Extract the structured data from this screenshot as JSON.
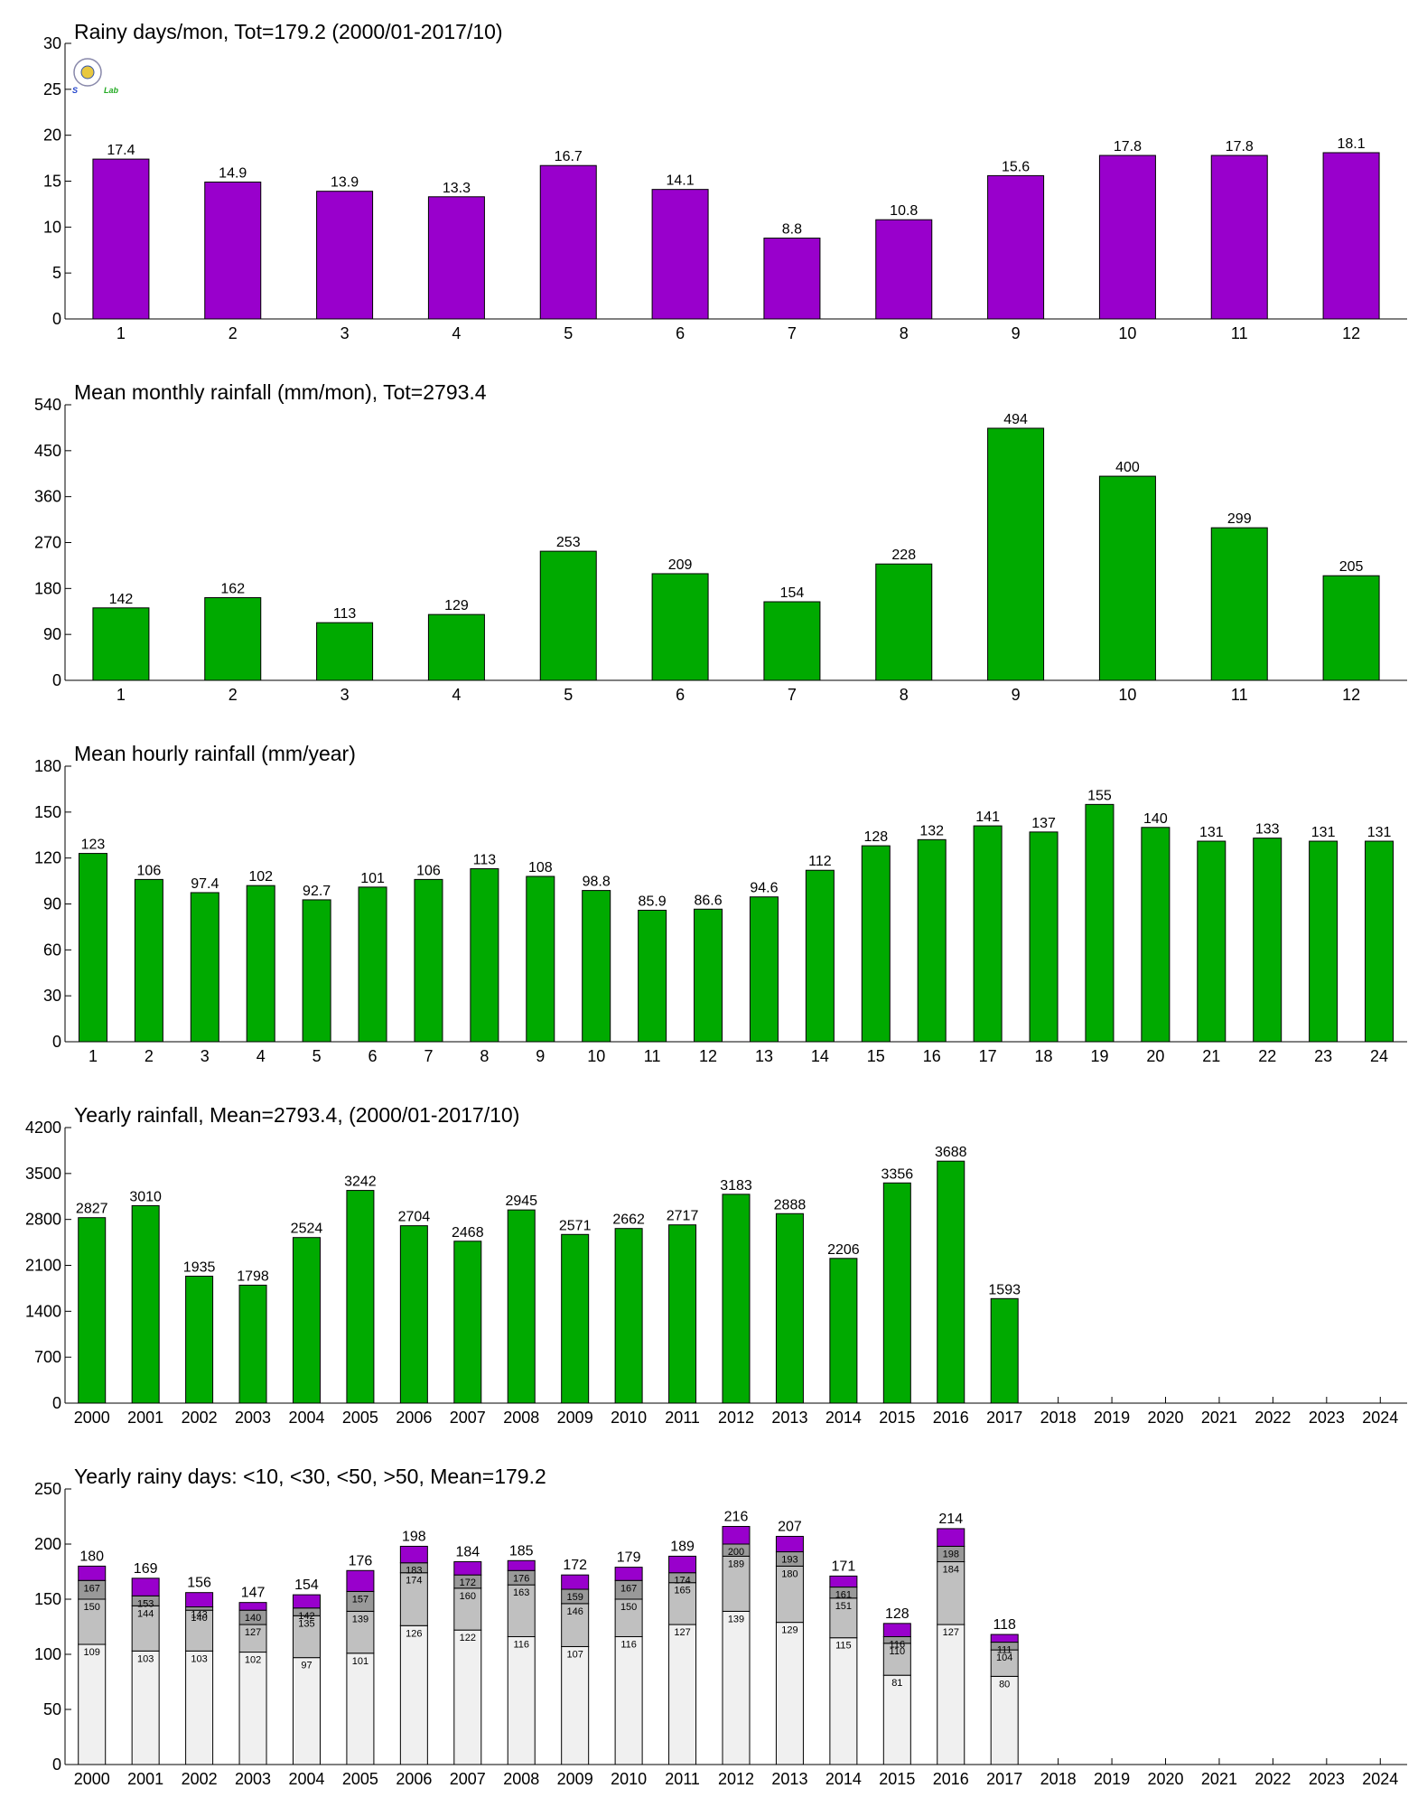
{
  "colors": {
    "purple": "#9900cc",
    "green": "#00aa00",
    "seg_lt10": "#f0f0f0",
    "seg_lt30": "#c0c0c0",
    "seg_lt50": "#999999",
    "axis": "#000000"
  },
  "logo": {
    "icon": "lab-logo-icon",
    "text_left": "S",
    "text_right": "Lab"
  },
  "chart_data": [
    {
      "type": "bar",
      "title": "Rainy days/mon, Tot=179.2 (2000/01-2017/10)",
      "categories": [
        "1",
        "2",
        "3",
        "4",
        "5",
        "6",
        "7",
        "8",
        "9",
        "10",
        "11",
        "12"
      ],
      "values": [
        17.4,
        14.9,
        13.9,
        13.3,
        16.7,
        14.1,
        8.8,
        10.8,
        15.6,
        17.8,
        17.8,
        18.1
      ],
      "labels": [
        "17.4",
        "14.9",
        "13.9",
        "13.3",
        "16.7",
        "14.1",
        "8.8",
        "10.8",
        "15.6",
        "17.8",
        "17.8",
        "18.1"
      ],
      "ylim": [
        0,
        30
      ],
      "yticks": [
        "0",
        "5",
        "10",
        "15",
        "20",
        "25",
        "30"
      ],
      "color": "#9900cc",
      "grid": false
    },
    {
      "type": "bar",
      "title": "Mean monthly rainfall (mm/mon), Tot=2793.4",
      "categories": [
        "1",
        "2",
        "3",
        "4",
        "5",
        "6",
        "7",
        "8",
        "9",
        "10",
        "11",
        "12"
      ],
      "values": [
        142,
        162,
        113,
        129,
        253,
        209,
        154,
        228,
        494,
        400,
        299,
        205
      ],
      "labels": [
        "142",
        "162",
        "113",
        "129",
        "253",
        "209",
        "154",
        "228",
        "494",
        "400",
        "299",
        "205"
      ],
      "ylim": [
        0,
        540
      ],
      "yticks": [
        "0",
        "90",
        "180",
        "270",
        "360",
        "450",
        "540"
      ],
      "color": "#00aa00",
      "grid": false
    },
    {
      "type": "bar",
      "title": "Mean hourly rainfall (mm/year)",
      "categories": [
        "1",
        "2",
        "3",
        "4",
        "5",
        "6",
        "7",
        "8",
        "9",
        "10",
        "11",
        "12",
        "13",
        "14",
        "15",
        "16",
        "17",
        "18",
        "19",
        "20",
        "21",
        "22",
        "23",
        "24"
      ],
      "values": [
        123,
        106,
        97.4,
        102,
        92.7,
        101,
        106,
        113,
        108,
        98.8,
        85.9,
        86.6,
        94.6,
        112,
        128,
        132,
        141,
        137,
        155,
        140,
        131,
        133,
        131,
        131
      ],
      "labels": [
        "123",
        "106",
        "97.4",
        "102",
        "92.7",
        "101",
        "106",
        "113",
        "108",
        "98.8",
        "85.9",
        "86.6",
        "94.6",
        "112",
        "128",
        "132",
        "141",
        "137",
        "155",
        "140",
        "131",
        "133",
        "131",
        "131"
      ],
      "ylim": [
        0,
        180
      ],
      "yticks": [
        "0",
        "30",
        "60",
        "90",
        "120",
        "150",
        "180"
      ],
      "color": "#00aa00",
      "grid": false
    },
    {
      "type": "bar",
      "title": "Yearly rainfall, Mean=2793.4, (2000/01-2017/10)",
      "categories": [
        "2000",
        "2001",
        "2002",
        "2003",
        "2004",
        "2005",
        "2006",
        "2007",
        "2008",
        "2009",
        "2010",
        "2011",
        "2012",
        "2013",
        "2014",
        "2015",
        "2016",
        "2017",
        "2018",
        "2019",
        "2020",
        "2021",
        "2022",
        "2023",
        "2024"
      ],
      "values": [
        2827,
        3010,
        1935,
        1798,
        2524,
        3242,
        2704,
        2468,
        2945,
        2571,
        2662,
        2717,
        3183,
        2888,
        2206,
        3356,
        3688,
        1593,
        null,
        null,
        null,
        null,
        null,
        null,
        null
      ],
      "labels": [
        "2827",
        "3010",
        "1935",
        "1798",
        "2524",
        "3242",
        "2704",
        "2468",
        "2945",
        "2571",
        "2662",
        "2717",
        "3183",
        "2888",
        "2206",
        "3356",
        "3688",
        "1593",
        "",
        "",
        "",
        "",
        "",
        "",
        ""
      ],
      "ylim": [
        0,
        4200
      ],
      "yticks": [
        "0",
        "700",
        "1400",
        "2100",
        "2800",
        "3500",
        "4200"
      ],
      "color": "#00aa00",
      "grid": false
    },
    {
      "type": "stacked-bar",
      "title": "Yearly rainy days: <10, <30, <50, >50, Mean=179.2",
      "categories": [
        "2000",
        "2001",
        "2002",
        "2003",
        "2004",
        "2005",
        "2006",
        "2007",
        "2008",
        "2009",
        "2010",
        "2011",
        "2012",
        "2013",
        "2014",
        "2015",
        "2016",
        "2017",
        "2018",
        "2019",
        "2020",
        "2021",
        "2022",
        "2023",
        "2024"
      ],
      "cumulative": [
        [
          109,
          150,
          167,
          180
        ],
        [
          103,
          144,
          153,
          169
        ],
        [
          103,
          140,
          143,
          156
        ],
        [
          102,
          127,
          140,
          147
        ],
        [
          97,
          135,
          142,
          154
        ],
        [
          101,
          139,
          157,
          176
        ],
        [
          126,
          174,
          183,
          198
        ],
        [
          122,
          160,
          172,
          184
        ],
        [
          116,
          163,
          176,
          185
        ],
        [
          107,
          146,
          159,
          172
        ],
        [
          116,
          150,
          167,
          179
        ],
        [
          127,
          165,
          174,
          189
        ],
        [
          139,
          189,
          200,
          216
        ],
        [
          129,
          180,
          193,
          207
        ],
        [
          115,
          151,
          161,
          171
        ],
        [
          81,
          110,
          116,
          128
        ],
        [
          127,
          184,
          198,
          214
        ],
        [
          80,
          104,
          111,
          118
        ],
        null,
        null,
        null,
        null,
        null,
        null,
        null
      ],
      "seg_labels": [
        [
          "109",
          "150",
          "167"
        ],
        [
          "103",
          "144",
          "153"
        ],
        [
          "103",
          "140",
          "143"
        ],
        [
          "102",
          "127",
          "140"
        ],
        [
          "97",
          "135",
          "142"
        ],
        [
          "101",
          "139",
          "157"
        ],
        [
          "126",
          "174",
          "183"
        ],
        [
          "122",
          "160",
          "172"
        ],
        [
          "116",
          "163",
          "176"
        ],
        [
          "107",
          "146",
          "159"
        ],
        [
          "116",
          "150",
          "167"
        ],
        [
          "127",
          "165",
          "174"
        ],
        [
          "139",
          "189",
          "200"
        ],
        [
          "129",
          "180",
          "193"
        ],
        [
          "115",
          "151",
          "161"
        ],
        [
          "81",
          "110",
          "116"
        ],
        [
          "127",
          "184",
          "198"
        ],
        [
          "80",
          "104",
          "111"
        ],
        null,
        null,
        null,
        null,
        null,
        null,
        null
      ],
      "top_labels": [
        "180",
        "169",
        "156",
        "147",
        "154",
        "176",
        "198",
        "184",
        "185",
        "172",
        "179",
        "189",
        "216",
        "207",
        "171",
        "128",
        "214",
        "118",
        "",
        "",
        "",
        "",
        "",
        "",
        ""
      ],
      "segment_colors": [
        "#f0f0f0",
        "#c0c0c0",
        "#999999",
        "#9900cc"
      ],
      "ylim": [
        0,
        250
      ],
      "yticks": [
        "0",
        "50",
        "100",
        "150",
        "200",
        "250"
      ],
      "grid": false
    }
  ]
}
